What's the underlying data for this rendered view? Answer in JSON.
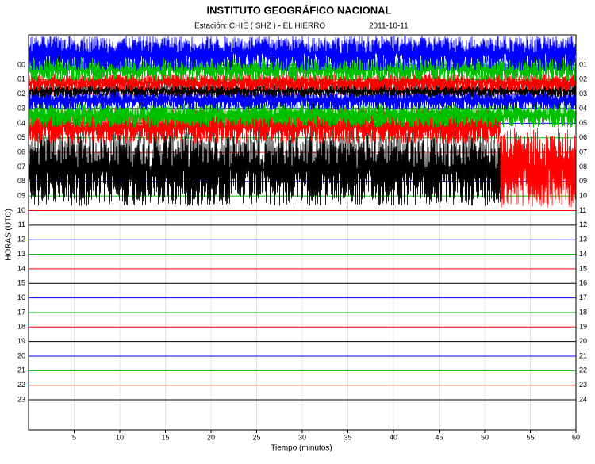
{
  "chart_data": {
    "type": "helicorder",
    "title": "INSTITUTO GEOGRÁFICO NACIONAL",
    "station": "Estación:  CHIE ( SHZ ) - EL HIERRO",
    "date": "2011-10-11",
    "xlabel": "Tiempo (minutos)",
    "ylabel": "HORAS (UTC)",
    "xlim": [
      0,
      60
    ],
    "xticks": [
      5,
      10,
      15,
      20,
      25,
      30,
      35,
      40,
      45,
      50,
      55,
      60
    ],
    "grid": true,
    "rows_left": [
      "00",
      "01",
      "02",
      "03",
      "04",
      "05",
      "06",
      "07",
      "08",
      "09",
      "10",
      "11",
      "12",
      "13",
      "14",
      "15",
      "16",
      "17",
      "18",
      "19",
      "20",
      "21",
      "22",
      "23"
    ],
    "rows_right": [
      "01",
      "02",
      "03",
      "04",
      "05",
      "06",
      "07",
      "08",
      "09",
      "10",
      "11",
      "12",
      "13",
      "14",
      "15",
      "16",
      "17",
      "18",
      "19",
      "20",
      "21",
      "22",
      "23",
      "24"
    ],
    "row_colors": [
      "#0000ff",
      "#00c000",
      "#ff0000",
      "#000000",
      "#0000ff",
      "#00c000",
      "#ff0000",
      "#000000",
      "#0000ff",
      "#00c000",
      "#ff0000",
      "#000000",
      "#0000ff",
      "#00c000",
      "#ff0000",
      "#000000",
      "#0000ff",
      "#00c000",
      "#ff0000",
      "#000000",
      "#0000ff",
      "#00c000",
      "#ff0000",
      "#000000"
    ],
    "traces": [
      {
        "color": "#ff0000",
        "range": [
          4.3,
          9.8
        ],
        "minutes": [
          51.7,
          60
        ]
      },
      {
        "color": "#000000",
        "range": [
          4.6,
          9.7
        ],
        "minutes": [
          0,
          51.7
        ]
      },
      {
        "color": "#ff0000",
        "range": [
          3.0,
          5.4
        ],
        "minutes": [
          0,
          51.7
        ]
      },
      {
        "color": "#00c000",
        "range": [
          2.6,
          4.3
        ],
        "minutes": [
          0,
          60
        ]
      },
      {
        "color": "#0000ff",
        "range": [
          1.7,
          3.1
        ],
        "minutes": [
          0,
          60
        ]
      },
      {
        "color": "#000000",
        "range": [
          1.3,
          2.2
        ],
        "minutes": [
          0,
          60
        ]
      },
      {
        "color": "#ff0000",
        "range": [
          0.6,
          1.8
        ],
        "minutes": [
          0,
          60
        ]
      },
      {
        "color": "#00c000",
        "range": [
          -0.6,
          1.1
        ],
        "minutes": [
          0,
          60
        ]
      },
      {
        "color": "#0000ff",
        "range": [
          -2.0,
          0.4
        ],
        "minutes": [
          0,
          60
        ]
      }
    ]
  }
}
